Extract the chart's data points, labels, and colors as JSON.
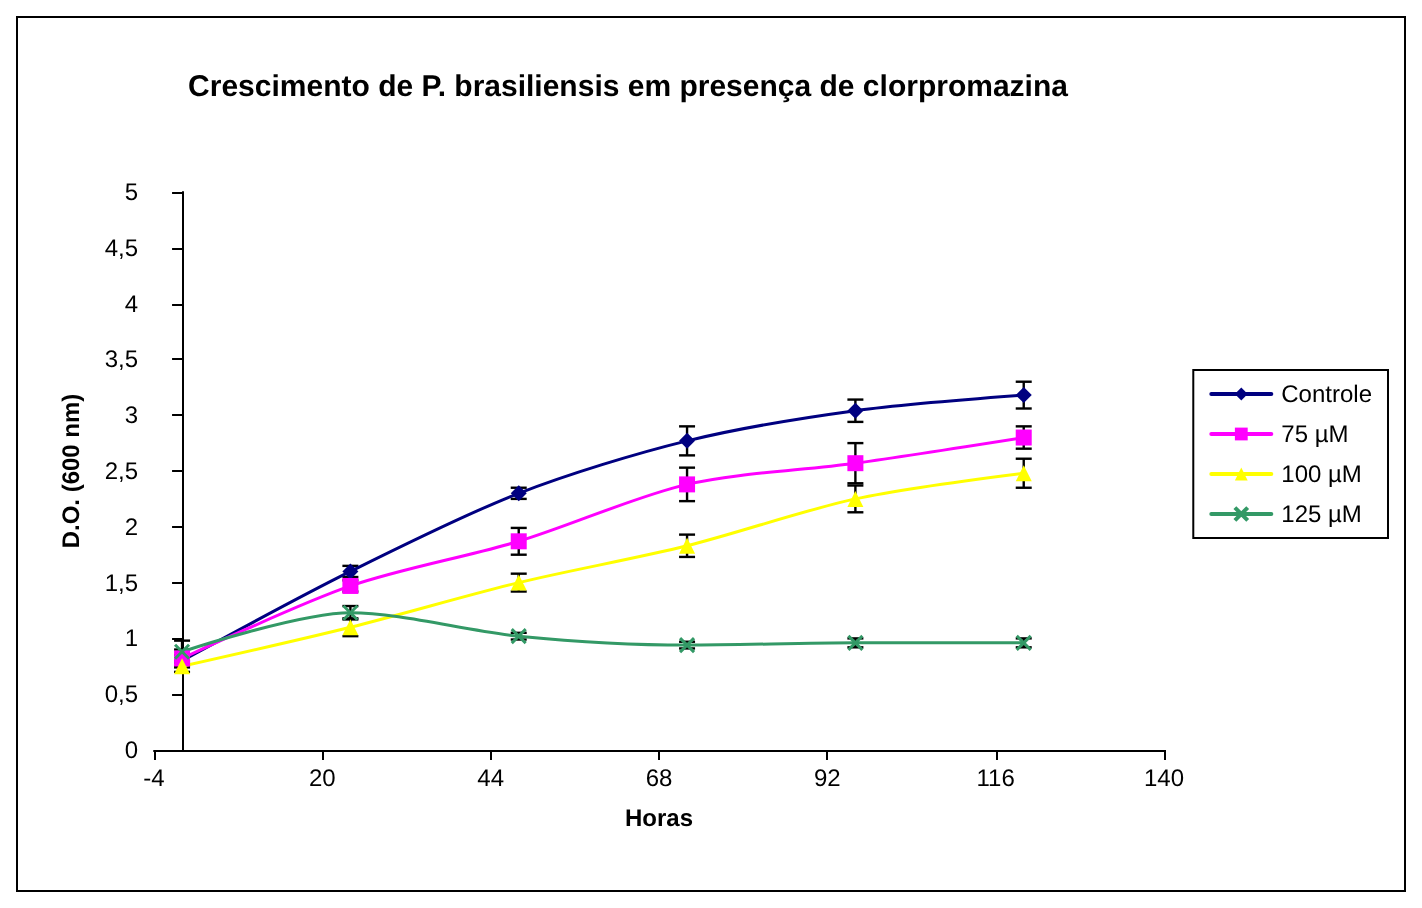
{
  "chart_data": {
    "type": "line",
    "title": "Crescimento de P. brasiliensis em presença de clorpromazina",
    "xlabel": "Horas",
    "ylabel": "D.O. (600 nm)",
    "x": [
      0,
      24,
      48,
      72,
      96,
      120
    ],
    "series": [
      {
        "name": "Controle",
        "color": "#000080",
        "marker": "diamond",
        "values": [
          0.8,
          1.6,
          2.3,
          2.77,
          3.04,
          3.18
        ],
        "errors": [
          0.05,
          0.05,
          0.05,
          0.13,
          0.1,
          0.12
        ]
      },
      {
        "name": "75 µM",
        "color": "#ff00ff",
        "marker": "square",
        "values": [
          0.82,
          1.47,
          1.87,
          2.38,
          2.57,
          2.8
        ],
        "errors": [
          0.08,
          0.05,
          0.12,
          0.15,
          0.18,
          0.1
        ]
      },
      {
        "name": "100 µM",
        "color": "#ffff00",
        "marker": "triangle",
        "values": [
          0.75,
          1.1,
          1.5,
          1.83,
          2.25,
          2.48
        ],
        "errors": [
          0.05,
          0.08,
          0.08,
          0.1,
          0.12,
          0.13
        ]
      },
      {
        "name": "125 µM",
        "color": "#339966",
        "marker": "cross",
        "values": [
          0.88,
          1.23,
          1.02,
          0.94,
          0.96,
          0.96
        ],
        "errors": [
          0.1,
          0.06,
          0.03,
          0.03,
          0.04,
          0.04
        ]
      }
    ],
    "xlim": [
      -4,
      140
    ],
    "xticks": [
      -4,
      20,
      44,
      68,
      92,
      116,
      140
    ],
    "ylim": [
      0,
      5
    ],
    "yticks": [
      0,
      {
        "value": 0.5,
        "label": "0,5"
      },
      1,
      {
        "value": 1.5,
        "label": "1,5"
      },
      2,
      {
        "value": 2.5,
        "label": "2,5"
      },
      3,
      {
        "value": 3.5,
        "label": "3,5"
      },
      4,
      {
        "value": 4.5,
        "label": "4,5"
      },
      5
    ],
    "grid": false,
    "legend": "right",
    "line_style": "solid"
  }
}
